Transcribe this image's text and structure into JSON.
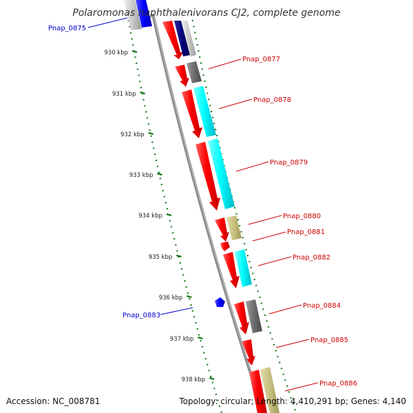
{
  "title": "Polaromonas naphthalenivorans CJ2, complete genome",
  "footer": {
    "accession": "Accession: NC_008781",
    "summary": "Topology: circular; Length: 4,410,291 bp; Genes: 4,140"
  },
  "colors": {
    "backbone": "#8c8c8c",
    "tick": "#1a7a1a",
    "forward_label": "#cc0000",
    "reverse_label": "#0000cc",
    "cds": "#ff0000",
    "cyan_feature": "#00ffff",
    "gray_feature": "#707070",
    "khaki_feature": "#c8c080",
    "navy_feature": "#00007a",
    "blue_feature": "#0000ff"
  },
  "ticks": [
    {
      "label": "930 kbp"
    },
    {
      "label": "931 kbp"
    },
    {
      "label": "932 kbp"
    },
    {
      "label": "933 kbp"
    },
    {
      "label": "934 kbp"
    },
    {
      "label": "935 kbp"
    },
    {
      "label": "936 kbp"
    },
    {
      "label": "937 kbp"
    },
    {
      "label": "938 kbp"
    }
  ],
  "gene_labels": [
    {
      "name": "Pnap_0875",
      "strand": "reverse"
    },
    {
      "name": "Pnap_0877",
      "strand": "forward"
    },
    {
      "name": "Pnap_0878",
      "strand": "forward"
    },
    {
      "name": "Pnap_0879",
      "strand": "forward"
    },
    {
      "name": "Pnap_0880",
      "strand": "forward"
    },
    {
      "name": "Pnap_0881",
      "strand": "forward"
    },
    {
      "name": "Pnap_0882",
      "strand": "forward"
    },
    {
      "name": "Pnap_0883",
      "strand": "reverse"
    },
    {
      "name": "Pnap_0884",
      "strand": "forward"
    },
    {
      "name": "Pnap_0885",
      "strand": "forward"
    },
    {
      "name": "Pnap_0886",
      "strand": "forward"
    }
  ]
}
